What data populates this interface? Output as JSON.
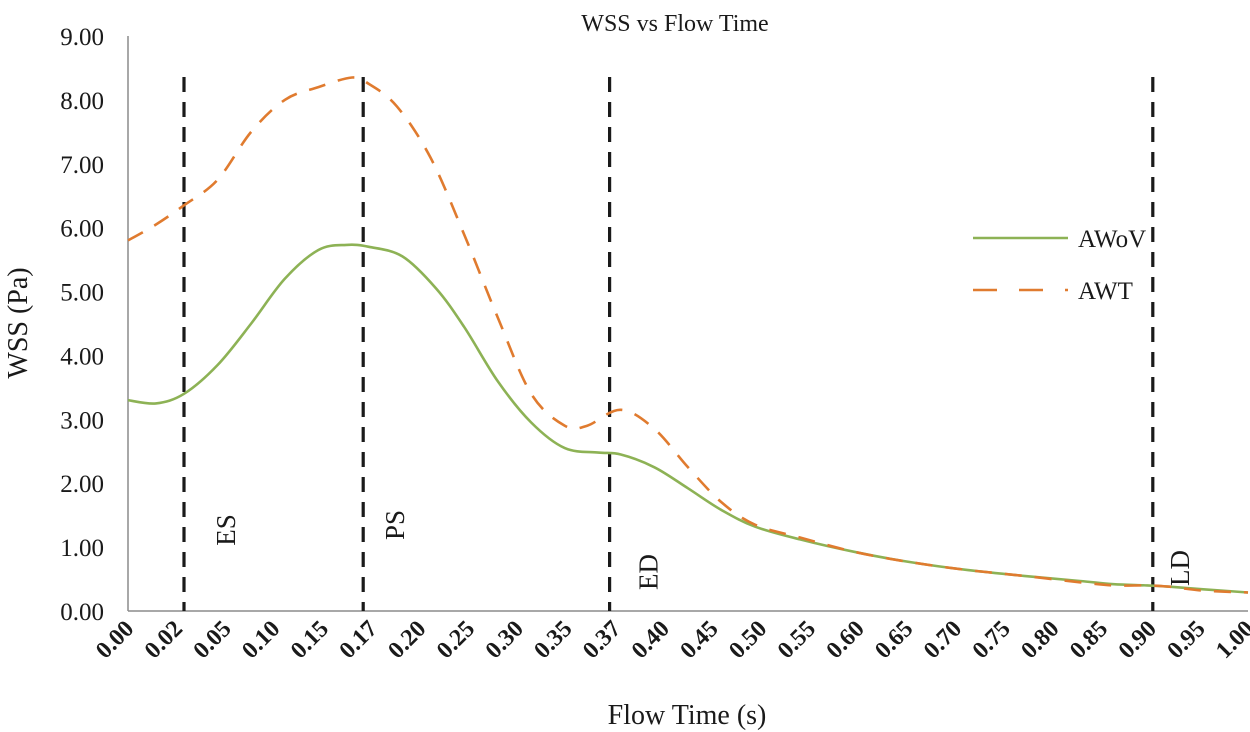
{
  "chart_data": {
    "type": "line",
    "title": "WSS vs Flow Time",
    "xlabel": "Flow Time (s)",
    "ylabel": "WSS (Pa)",
    "ylim": [
      0,
      9
    ],
    "yticks": [
      "0.00",
      "1.00",
      "2.00",
      "3.00",
      "4.00",
      "5.00",
      "6.00",
      "7.00",
      "8.00",
      "9.00"
    ],
    "categories": [
      "0.00",
      "0.02",
      "0.05",
      "0.10",
      "0.15",
      "0.17",
      "0.20",
      "0.25",
      "0.30",
      "0.35",
      "0.37",
      "0.40",
      "0.45",
      "0.50",
      "0.55",
      "0.60",
      "0.65",
      "0.70",
      "0.75",
      "0.80",
      "0.85",
      "0.90",
      "0.95",
      "1.00"
    ],
    "grid": false,
    "legend_position": "right",
    "series": [
      {
        "name": "AWoV",
        "color": "#8db255",
        "style": "solid",
        "points": [
          [
            0.0,
            3.3
          ],
          [
            0.025,
            3.25
          ],
          [
            0.05,
            3.4
          ],
          [
            0.08,
            3.85
          ],
          [
            0.11,
            4.5
          ],
          [
            0.14,
            5.2
          ],
          [
            0.17,
            5.65
          ],
          [
            0.195,
            5.73
          ],
          [
            0.215,
            5.7
          ],
          [
            0.245,
            5.55
          ],
          [
            0.275,
            5.05
          ],
          [
            0.3,
            4.45
          ],
          [
            0.33,
            3.6
          ],
          [
            0.36,
            2.95
          ],
          [
            0.39,
            2.55
          ],
          [
            0.42,
            2.48
          ],
          [
            0.44,
            2.45
          ],
          [
            0.47,
            2.25
          ],
          [
            0.5,
            1.92
          ],
          [
            0.53,
            1.58
          ],
          [
            0.56,
            1.32
          ],
          [
            0.6,
            1.12
          ],
          [
            0.65,
            0.92
          ],
          [
            0.7,
            0.76
          ],
          [
            0.75,
            0.64
          ],
          [
            0.8,
            0.55
          ],
          [
            0.85,
            0.47
          ],
          [
            0.88,
            0.42
          ],
          [
            0.91,
            0.4
          ],
          [
            0.93,
            0.38
          ],
          [
            0.96,
            0.34
          ],
          [
            1.0,
            0.29
          ]
        ]
      },
      {
        "name": "AWT",
        "color": "#e07b2f",
        "style": "dashed",
        "points": [
          [
            0.0,
            5.8
          ],
          [
            0.025,
            6.05
          ],
          [
            0.05,
            6.35
          ],
          [
            0.08,
            6.75
          ],
          [
            0.11,
            7.5
          ],
          [
            0.14,
            8.0
          ],
          [
            0.17,
            8.2
          ],
          [
            0.2,
            8.35
          ],
          [
            0.215,
            8.25
          ],
          [
            0.24,
            7.9
          ],
          [
            0.27,
            7.1
          ],
          [
            0.3,
            5.9
          ],
          [
            0.33,
            4.6
          ],
          [
            0.36,
            3.4
          ],
          [
            0.39,
            2.9
          ],
          [
            0.41,
            2.9
          ],
          [
            0.44,
            3.15
          ],
          [
            0.47,
            2.85
          ],
          [
            0.5,
            2.25
          ],
          [
            0.53,
            1.7
          ],
          [
            0.56,
            1.35
          ],
          [
            0.6,
            1.15
          ],
          [
            0.65,
            0.92
          ],
          [
            0.7,
            0.76
          ],
          [
            0.75,
            0.64
          ],
          [
            0.8,
            0.55
          ],
          [
            0.85,
            0.45
          ],
          [
            0.88,
            0.4
          ],
          [
            0.91,
            0.4
          ],
          [
            0.93,
            0.38
          ],
          [
            0.96,
            0.32
          ],
          [
            1.0,
            0.29
          ]
        ]
      }
    ],
    "annotations": [
      {
        "label": "ES",
        "x": 0.05
      },
      {
        "label": "PS",
        "x": 0.21
      },
      {
        "label": "ED",
        "x": 0.43
      },
      {
        "label": "LD",
        "x": 0.915
      }
    ]
  }
}
